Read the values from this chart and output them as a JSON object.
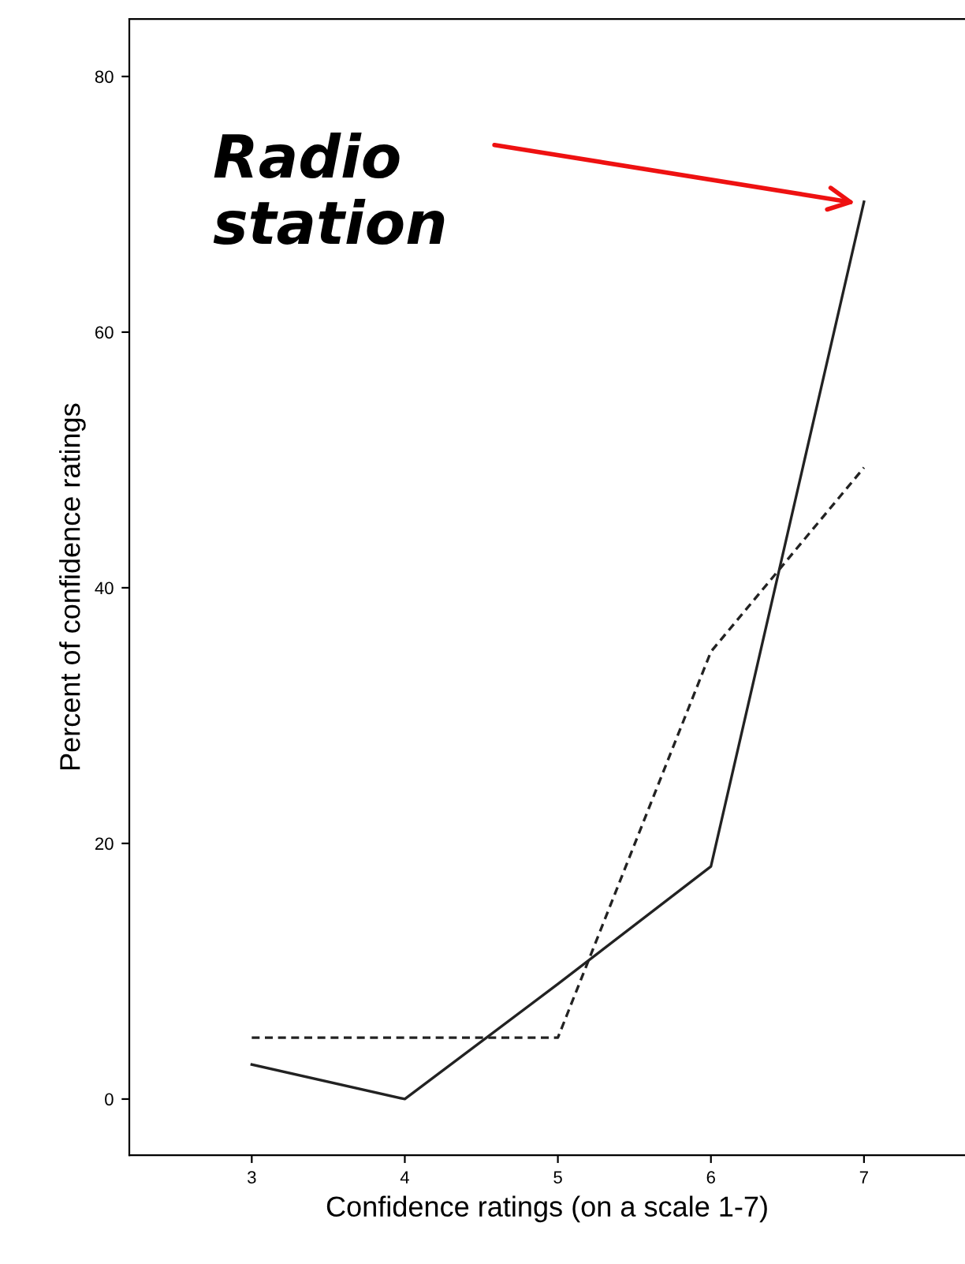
{
  "chart_data": {
    "type": "line",
    "xlabel": "Confidence ratings (on a scale 1-7)",
    "ylabel": "Percent of confidence ratings",
    "x": [
      3,
      4,
      5,
      6,
      7
    ],
    "series": [
      {
        "color": "#222222",
        "line_style": "solid",
        "values": [
          2.7,
          0,
          9,
          18.2,
          70.2
        ]
      },
      {
        "color": "#222222",
        "line_style": "dashed",
        "values": [
          4.8,
          4.8,
          4.8,
          35,
          49.4
        ]
      }
    ],
    "xlim": [
      2.2,
      7.66
    ],
    "ylim": [
      -4.4,
      84.5
    ],
    "xticks": [
      3,
      4,
      5,
      6,
      7
    ],
    "yticks": [
      0,
      20,
      40,
      60,
      80
    ],
    "annotations": [
      {
        "text": "Radio\nstation",
        "x": 7,
        "y": 70
      }
    ],
    "grid": false,
    "legend": false,
    "marker": "none"
  }
}
